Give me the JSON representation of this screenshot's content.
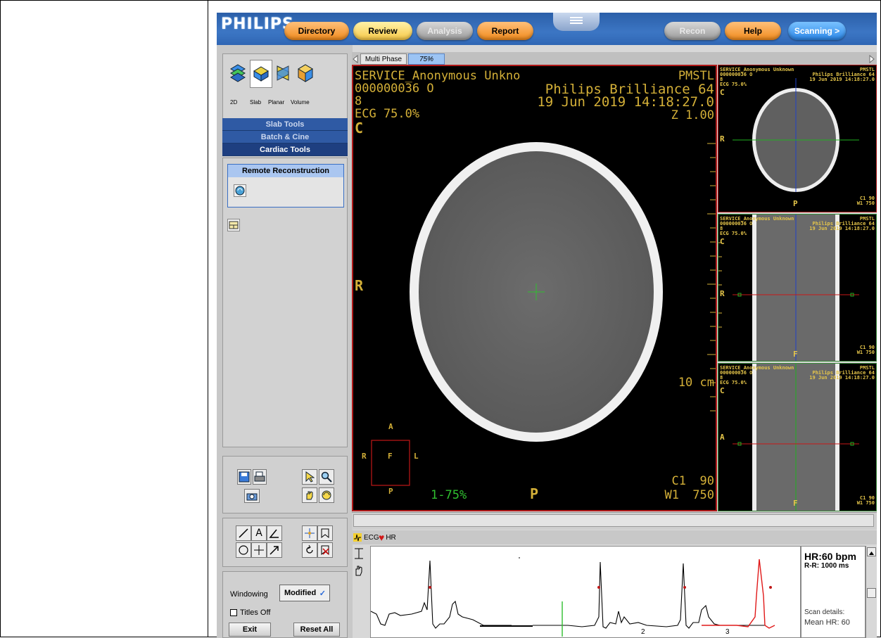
{
  "logo": "PHILIPS",
  "nav": {
    "directory": "Directory",
    "review": "Review",
    "analysis": "Analysis",
    "report": "Report",
    "recon": "Recon",
    "help": "Help",
    "scanning": "Scanning >"
  },
  "view_modes": [
    "2D",
    "Slab",
    "Planar",
    "Volume"
  ],
  "sections": {
    "slab_tools": "Slab Tools",
    "batch_cine": "Batch & Cine",
    "cardiac_tools": "Cardiac Tools"
  },
  "remote_reconstruction": "Remote Reconstruction",
  "windowing": {
    "label": "Windowing",
    "value": "Modified",
    "titles_off": "Titles Off"
  },
  "buttons": {
    "exit": "Exit",
    "reset_all": "Reset All"
  },
  "tabs": {
    "multi_phase": "Multi Phase",
    "phase": "75%"
  },
  "main_view": {
    "patient": "SERVICE_Anonymous Unkno",
    "id": "000000036 O",
    "series": "8",
    "ecg": "ECG 75.0%",
    "orient_top": "C",
    "institution": "PMSTL",
    "scanner": "Philips Brilliance 64",
    "datetime": "19 Jun 2019 14:18:27.0",
    "zoom": "Z  1.00",
    "left_label": "R",
    "scale": "10 cm",
    "bottom_label": "P",
    "phase_text": "1-75%",
    "c1_label": "C1",
    "c1_value": "90",
    "w1_label": "W1",
    "w1_value": "750",
    "loc_a": "A",
    "loc_r": "R",
    "loc_f": "F",
    "loc_l": "L",
    "loc_p": "P"
  },
  "side_views": [
    {
      "patient": "SERVICE_Anonymous Unknown",
      "id": "000000036 O",
      "series": "8",
      "ecg": "ECG 75.0%",
      "top": "C",
      "institution": "PMSTL",
      "scanner": "Philips Brilliance 64",
      "datetime": "19 Jun 2019 14:18:27.0",
      "left": "R",
      "bottom": "P",
      "c1": "C1  90",
      "w1": "W1  750"
    },
    {
      "patient": "SERVICE_Anonymous Unknown",
      "id": "000000036 O",
      "series": "8",
      "ecg": "ECG 75.0%",
      "top": "C",
      "institution": "PMSTL",
      "scanner": "Philips Brilliance 64",
      "datetime": "19 Jun 2019 14:18:27.0",
      "left": "R",
      "bottom": "F",
      "c1": "C1  90",
      "w1": "W1  750"
    },
    {
      "patient": "SERVICE_Anonymous Unknown",
      "id": "000000036 O",
      "series": "8",
      "ecg": "ECG 75.0%",
      "top": "C",
      "institution": "PMSTL",
      "scanner": "Philips Brilliance 64",
      "datetime": "19 Jun 2019 14:18:27.0",
      "left": "A",
      "bottom": "F",
      "c1": "C1  90",
      "w1": "W1  750"
    }
  ],
  "ecg_tabs": {
    "ecg": "ECG",
    "hr": "HR"
  },
  "ecg_markers": [
    "2",
    "3"
  ],
  "heart_rate": {
    "hr": "HR:60 bpm",
    "rr": "R-R: 1000 ms",
    "scan_details": "Scan details:",
    "mean_hr": "Mean HR: 60"
  },
  "colors": {
    "accent_orange": "#f08a1c",
    "top_bar": "#3c76c4",
    "overlay_text": "#d4b038",
    "active_frame": "#b01818"
  }
}
